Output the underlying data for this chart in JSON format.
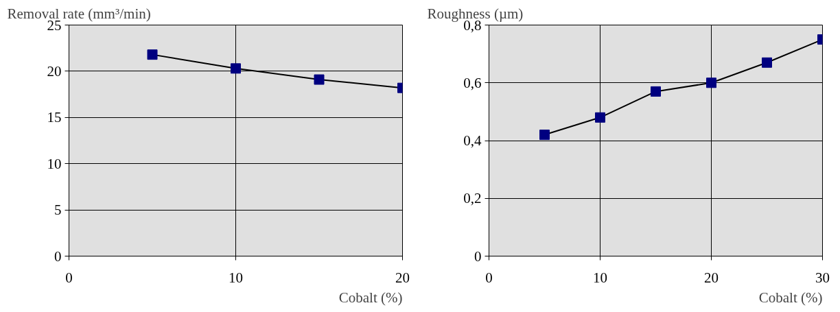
{
  "chart_data": [
    {
      "type": "line",
      "ylabel": "Removal rate (mm³/min)",
      "xlabel": "Cobalt (%)",
      "x": [
        5,
        10,
        15,
        20
      ],
      "series": [
        {
          "color": "#000080",
          "values": [
            21.8,
            20.3,
            19.1,
            18.2
          ]
        }
      ],
      "xlim": [
        0,
        20
      ],
      "xticks": [
        0,
        10,
        20
      ],
      "ylim": [
        0,
        25
      ],
      "yticks": [
        0,
        5,
        10,
        15,
        20,
        25
      ],
      "grid": true,
      "marker": "square",
      "line_style": "solid"
    },
    {
      "type": "line",
      "ylabel": "Roughness (µm)",
      "xlabel": "Cobalt (%)",
      "x": [
        5,
        10,
        15,
        20,
        25,
        30
      ],
      "series": [
        {
          "color": "#000080",
          "values": [
            0.42,
            0.48,
            0.57,
            0.6,
            0.67,
            0.75
          ]
        }
      ],
      "xlim": [
        0,
        30
      ],
      "xticks": [
        0,
        10,
        20,
        30
      ],
      "ylim": [
        0,
        0.8
      ],
      "yticks": [
        0,
        {
          "value": 0.2,
          "label": "0,2"
        },
        {
          "value": 0.4,
          "label": "0,4"
        },
        {
          "value": 0.6,
          "label": "0,6"
        },
        {
          "value": 0.8,
          "label": "0,8"
        }
      ],
      "grid": true,
      "marker": "square",
      "line_style": "solid"
    }
  ]
}
